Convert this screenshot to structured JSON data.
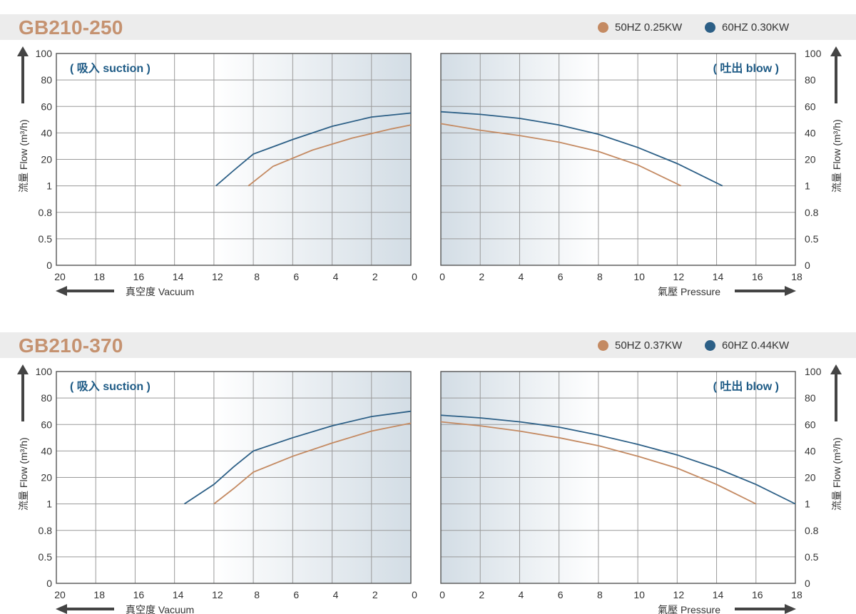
{
  "colors": {
    "title": "#c59270",
    "hz50": "#c48a62",
    "hz60": "#2c5f86",
    "annotation": "#1d5a85"
  },
  "charts": [
    {
      "model": "GB210-250",
      "legend": [
        {
          "label": "50HZ  0.25KW",
          "color": "#c48a62"
        },
        {
          "label": "60HZ  0.30KW",
          "color": "#2c5f86"
        }
      ],
      "suction_annotation": "( 吸入 suction )",
      "blow_annotation": "( 吐出 blow )",
      "xlabel_vacuum": "真空度  Vacuum",
      "xlabel_pressure": "氣壓  Pressure",
      "ylabel_left": "流量 Flow (m³/h)",
      "ylabel_right": "流量 Flow (m³/h)"
    },
    {
      "model": "GB210-370",
      "legend": [
        {
          "label": "50HZ  0.37KW",
          "color": "#c48a62"
        },
        {
          "label": "60HZ  0.44KW",
          "color": "#2c5f86"
        }
      ],
      "suction_annotation": "( 吸入 suction )",
      "blow_annotation": "( 吐出 blow )",
      "xlabel_vacuum": "真空度  Vacuum",
      "xlabel_pressure": "氣壓  Pressure",
      "ylabel_left": "流量 Flow (m³/h)",
      "ylabel_right": "流量 Flow (m³/h)"
    }
  ],
  "chart_data": [
    {
      "type": "line",
      "title": "GB210-250",
      "y_ticks": [
        "100",
        "80",
        "60",
        "40",
        "20",
        "1",
        "0.8",
        "0.5",
        "0"
      ],
      "suction": {
        "xlabel": "真空度  Vacuum",
        "x_ticks": [
          "20",
          "18",
          "16",
          "14",
          "12",
          "8",
          "6",
          "4",
          "2",
          "0"
        ],
        "series": [
          {
            "name": "50HZ  0.25KW",
            "color": "#c48a62",
            "x": [
              "8.5",
              "7",
              "5",
              "3",
              "1",
              "0"
            ],
            "y": [
              1,
              15,
              27,
              36,
              43,
              46
            ]
          },
          {
            "name": "60HZ  0.30KW",
            "color": "#2c5f86",
            "x": [
              "11.8",
              "10",
              "8",
              "6",
              "4",
              "2",
              "0"
            ],
            "y": [
              1,
              12,
              24,
              35,
              45,
              52,
              55
            ]
          }
        ]
      },
      "blow": {
        "xlabel": "氣壓  Pressure",
        "x_ticks": [
          "0",
          "2",
          "4",
          "6",
          "8",
          "10",
          "12",
          "14",
          "16",
          "18"
        ],
        "series": [
          {
            "name": "50HZ  0.25KW",
            "color": "#c48a62",
            "x": [
              0,
              2,
              4,
              6,
              8,
              10,
              12.2
            ],
            "y": [
              47,
              42,
              38,
              33,
              26,
              16,
              1
            ]
          },
          {
            "name": "60HZ  0.30KW",
            "color": "#2c5f86",
            "x": [
              0,
              2,
              4,
              6,
              8,
              10,
              12,
              14.3
            ],
            "y": [
              56,
              54,
              51,
              46,
              39,
              29,
              17,
              1
            ]
          }
        ]
      }
    },
    {
      "type": "line",
      "title": "GB210-370",
      "y_ticks": [
        "100",
        "80",
        "60",
        "40",
        "20",
        "1",
        "0.8",
        "0.5",
        "0"
      ],
      "suction": {
        "xlabel": "真空度  Vacuum",
        "x_ticks": [
          "20",
          "18",
          "16",
          "14",
          "12",
          "8",
          "6",
          "4",
          "2",
          "0"
        ],
        "series": [
          {
            "name": "50HZ  0.37KW",
            "color": "#c48a62",
            "x": [
              "12",
              "10",
              "8",
              "6",
              "4",
              "2",
              "0"
            ],
            "y": [
              1,
              12,
              24,
              36,
              46,
              55,
              61
            ]
          },
          {
            "name": "60HZ  0.44KW",
            "color": "#2c5f86",
            "x": [
              "13.5",
              "12",
              "10",
              "8",
              "6",
              "4",
              "2",
              "0"
            ],
            "y": [
              1,
              15,
              28,
              40,
              50,
              59,
              66,
              70
            ]
          }
        ]
      },
      "blow": {
        "xlabel": "氣壓  Pressure",
        "x_ticks": [
          "0",
          "2",
          "4",
          "6",
          "8",
          "10",
          "12",
          "14",
          "16",
          "18"
        ],
        "series": [
          {
            "name": "50HZ  0.37KW",
            "color": "#c48a62",
            "x": [
              0,
              2,
              4,
              6,
              8,
              10,
              12,
              14,
              16
            ],
            "y": [
              62,
              59,
              55,
              50,
              44,
              36,
              27,
              15,
              1
            ]
          },
          {
            "name": "60HZ  0.44KW",
            "color": "#2c5f86",
            "x": [
              0,
              2,
              4,
              6,
              8,
              10,
              12,
              14,
              16,
              18
            ],
            "y": [
              67,
              65,
              62,
              58,
              52,
              45,
              37,
              27,
              15,
              1
            ]
          }
        ]
      }
    }
  ]
}
